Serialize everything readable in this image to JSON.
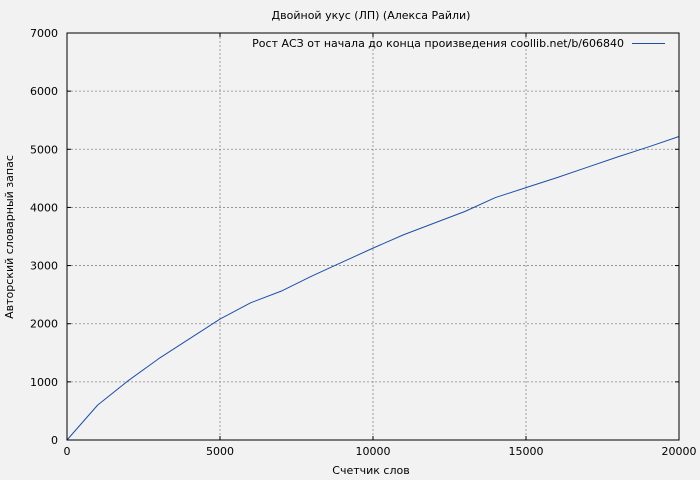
{
  "chart_data": {
    "type": "line",
    "title": "Двойной укус (ЛП) (Алекса Райли)",
    "xlabel": "Счетчик слов",
    "ylabel": "Авторский словарный запас",
    "xlim": [
      0,
      20000
    ],
    "ylim": [
      0,
      7000
    ],
    "xticks": [
      0,
      5000,
      10000,
      15000,
      20000
    ],
    "yticks": [
      0,
      1000,
      2000,
      3000,
      4000,
      5000,
      6000,
      7000
    ],
    "grid": true,
    "legend_position": "top-right",
    "series": [
      {
        "name": "Рост АСЗ от начала до конца произведения coollib.net/b/606840",
        "color": "#1f4ea8",
        "x": [
          0,
          1000,
          2000,
          3000,
          4000,
          5000,
          6000,
          7000,
          8000,
          9000,
          10000,
          11000,
          12000,
          13000,
          14000,
          15000,
          16000,
          17000,
          18000,
          19000,
          20000
        ],
        "y": [
          0,
          600,
          1020,
          1400,
          1740,
          2080,
          2360,
          2560,
          2820,
          3060,
          3300,
          3530,
          3730,
          3930,
          4170,
          4340,
          4510,
          4690,
          4870,
          5040,
          5220
        ]
      }
    ]
  }
}
